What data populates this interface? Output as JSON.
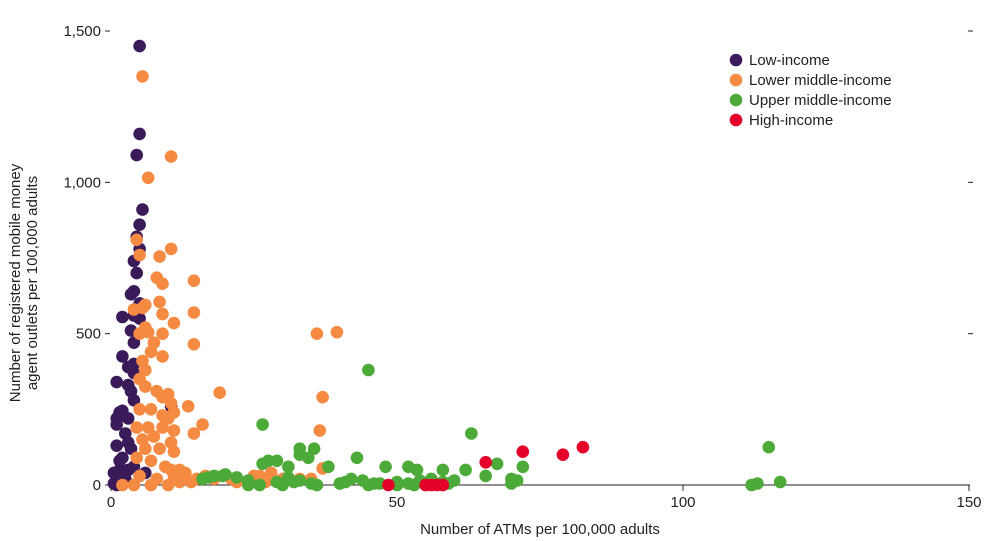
{
  "chart_data": {
    "type": "scatter",
    "title": "",
    "xlabel": "Number of ATMs per 100,000 adults",
    "ylabel": "Number of registered mobile money agent outlets per 100,000 adults",
    "ylabel_lines": [
      "Number of registered mobile money",
      "agent outlets per 100,000 adults"
    ],
    "xlim": [
      0,
      150
    ],
    "ylim": [
      0,
      1500
    ],
    "x_ticks": [
      0,
      50,
      100,
      150
    ],
    "x_tick_labels": [
      "0",
      "50",
      "100",
      "150"
    ],
    "y_ticks": [
      0,
      500,
      1000,
      1500
    ],
    "y_tick_labels": [
      "0",
      "500",
      "1,000",
      "1,500"
    ],
    "grid": false,
    "legend_position": "top-right",
    "series": [
      {
        "name": "Low-income",
        "color": "#3b1a5a",
        "points": [
          [
            5,
            1450
          ],
          [
            5,
            1160
          ],
          [
            4.5,
            1090
          ],
          [
            5.5,
            910
          ],
          [
            5,
            860
          ],
          [
            4.5,
            820
          ],
          [
            5,
            780
          ],
          [
            4,
            740
          ],
          [
            4.5,
            700
          ],
          [
            4,
            640
          ],
          [
            3.5,
            630
          ],
          [
            5,
            600
          ],
          [
            4,
            560
          ],
          [
            5,
            550
          ],
          [
            2,
            555
          ],
          [
            3.5,
            510
          ],
          [
            4,
            470
          ],
          [
            2,
            425
          ],
          [
            4,
            400
          ],
          [
            3,
            390
          ],
          [
            4,
            370
          ],
          [
            3,
            330
          ],
          [
            1,
            340
          ],
          [
            3.5,
            310
          ],
          [
            4,
            280
          ],
          [
            2,
            245
          ],
          [
            1.5,
            240
          ],
          [
            1,
            220
          ],
          [
            2,
            230
          ],
          [
            3,
            220
          ],
          [
            1,
            200
          ],
          [
            2.5,
            170
          ],
          [
            1,
            130
          ],
          [
            3,
            140
          ],
          [
            2,
            90
          ],
          [
            1.5,
            50
          ],
          [
            0.5,
            40
          ],
          [
            4,
            60
          ],
          [
            5,
            30
          ],
          [
            1,
            10
          ],
          [
            1,
            0
          ],
          [
            2.5,
            20
          ],
          [
            3,
            50
          ],
          [
            0.5,
            5
          ],
          [
            1.5,
            80
          ],
          [
            6,
            40
          ],
          [
            10.5,
            260
          ],
          [
            3.5,
            120
          ]
        ]
      },
      {
        "name": "Lower middle-income",
        "color": "#f58a42",
        "points": [
          [
            5.5,
            1350
          ],
          [
            10.5,
            1085
          ],
          [
            6.5,
            1015
          ],
          [
            4.5,
            810
          ],
          [
            10.5,
            780
          ],
          [
            5,
            760
          ],
          [
            8.5,
            755
          ],
          [
            8,
            685
          ],
          [
            9,
            665
          ],
          [
            14.5,
            675
          ],
          [
            6,
            595
          ],
          [
            8.5,
            605
          ],
          [
            5.5,
            585
          ],
          [
            4,
            580
          ],
          [
            9,
            565
          ],
          [
            14.5,
            570
          ],
          [
            11,
            535
          ],
          [
            6,
            520
          ],
          [
            5,
            500
          ],
          [
            6.5,
            505
          ],
          [
            9,
            500
          ],
          [
            7.5,
            470
          ],
          [
            14.5,
            465
          ],
          [
            7,
            440
          ],
          [
            9,
            425
          ],
          [
            5.5,
            410
          ],
          [
            6,
            380
          ],
          [
            5,
            350
          ],
          [
            6,
            325
          ],
          [
            8,
            310
          ],
          [
            10,
            300
          ],
          [
            19,
            305
          ],
          [
            9,
            290
          ],
          [
            10.5,
            270
          ],
          [
            13.5,
            260
          ],
          [
            5,
            250
          ],
          [
            7,
            250
          ],
          [
            11,
            240
          ],
          [
            9,
            230
          ],
          [
            10,
            220
          ],
          [
            4.5,
            190
          ],
          [
            6.5,
            190
          ],
          [
            9,
            190
          ],
          [
            11,
            180
          ],
          [
            16,
            200
          ],
          [
            14.5,
            170
          ],
          [
            5.5,
            150
          ],
          [
            7.5,
            160
          ],
          [
            10.5,
            140
          ],
          [
            6,
            120
          ],
          [
            8.5,
            120
          ],
          [
            11,
            110
          ],
          [
            4.5,
            90
          ],
          [
            7,
            80
          ],
          [
            9.5,
            60
          ],
          [
            10.5,
            50
          ],
          [
            12,
            50
          ],
          [
            5,
            30
          ],
          [
            8,
            20
          ],
          [
            11,
            30
          ],
          [
            13,
            40
          ],
          [
            15,
            20
          ],
          [
            16.5,
            30
          ],
          [
            18,
            20
          ],
          [
            21,
            20
          ],
          [
            25,
            30
          ],
          [
            28,
            40
          ],
          [
            30,
            20
          ],
          [
            33,
            20
          ],
          [
            35,
            20
          ],
          [
            36,
            500
          ],
          [
            39.5,
            505
          ],
          [
            37,
            290
          ],
          [
            37,
            55
          ],
          [
            36.5,
            180
          ],
          [
            2,
            0
          ],
          [
            4,
            0
          ],
          [
            7,
            0
          ],
          [
            10,
            0
          ],
          [
            12,
            10
          ],
          [
            14,
            10
          ],
          [
            26,
            30
          ],
          [
            27,
            10
          ],
          [
            22,
            10
          ]
        ]
      },
      {
        "name": "Upper middle-income",
        "color": "#4caa38",
        "points": [
          [
            45,
            380
          ],
          [
            26.5,
            200
          ],
          [
            63,
            170
          ],
          [
            115,
            125
          ],
          [
            33,
            120
          ],
          [
            35.5,
            120
          ],
          [
            33,
            100
          ],
          [
            34.5,
            90
          ],
          [
            29,
            80
          ],
          [
            26.5,
            70
          ],
          [
            27.5,
            80
          ],
          [
            31,
            60
          ],
          [
            38,
            60
          ],
          [
            43,
            90
          ],
          [
            48,
            60
          ],
          [
            52,
            60
          ],
          [
            53.5,
            50
          ],
          [
            58,
            50
          ],
          [
            62,
            50
          ],
          [
            67.5,
            70
          ],
          [
            72,
            60
          ],
          [
            65.5,
            30
          ],
          [
            70,
            20
          ],
          [
            18,
            30
          ],
          [
            20,
            35
          ],
          [
            22,
            25
          ],
          [
            24,
            15
          ],
          [
            32,
            10
          ],
          [
            35,
            5
          ],
          [
            40,
            5
          ],
          [
            42,
            20
          ],
          [
            44,
            15
          ],
          [
            46,
            5
          ],
          [
            50,
            10
          ],
          [
            52,
            5
          ],
          [
            54,
            15
          ],
          [
            56,
            20
          ],
          [
            58,
            10
          ],
          [
            60,
            15
          ],
          [
            70,
            5
          ],
          [
            71,
            15
          ],
          [
            113,
            5
          ],
          [
            117,
            10
          ],
          [
            112,
            0
          ],
          [
            24,
            0
          ],
          [
            26,
            0
          ],
          [
            30,
            0
          ],
          [
            36,
            0
          ],
          [
            45,
            0
          ],
          [
            50,
            0
          ],
          [
            59,
            5
          ],
          [
            16,
            20
          ],
          [
            17,
            25
          ],
          [
            19.5,
            30
          ],
          [
            29,
            10
          ],
          [
            31,
            25
          ],
          [
            33,
            15
          ],
          [
            41,
            10
          ],
          [
            47,
            5
          ],
          [
            53,
            0
          ],
          [
            55,
            0
          ]
        ]
      },
      {
        "name": "High-income",
        "color": "#e4002b",
        "points": [
          [
            82.5,
            125
          ],
          [
            72,
            110
          ],
          [
            79,
            100
          ],
          [
            65.5,
            75
          ],
          [
            48.5,
            0
          ],
          [
            55,
            0
          ],
          [
            56,
            0
          ],
          [
            57,
            0
          ],
          [
            58,
            0
          ]
        ]
      }
    ]
  }
}
